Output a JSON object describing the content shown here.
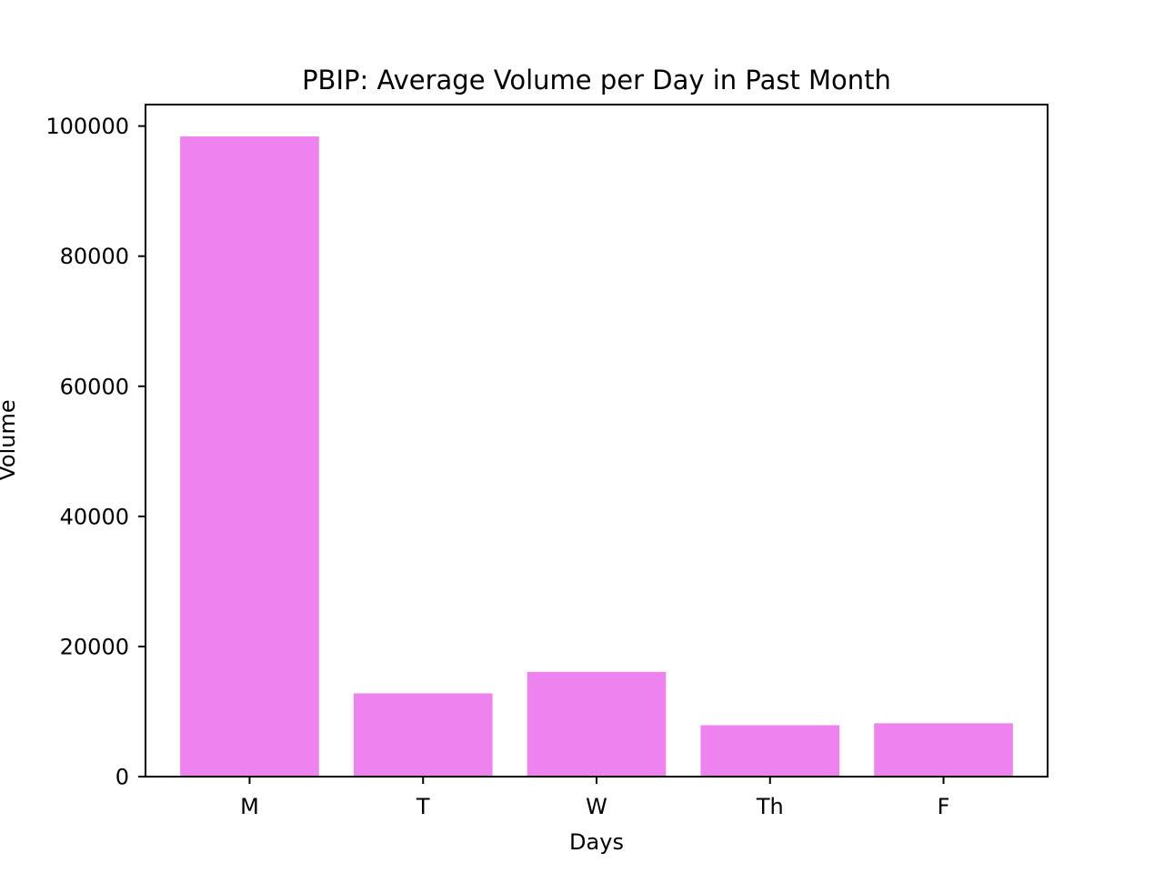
{
  "chart_data": {
    "type": "bar",
    "title": "PBIP: Average Volume per Day in Past Month",
    "xlabel": "Days",
    "ylabel": "Volume",
    "categories": [
      "M",
      "T",
      "W",
      "Th",
      "F"
    ],
    "values": [
      98400,
      12800,
      16100,
      7900,
      8200
    ],
    "ylim": [
      0,
      103300
    ],
    "yticks": [
      0,
      20000,
      40000,
      60000,
      80000,
      100000
    ],
    "ytick_labels": [
      "0",
      "20000",
      "40000",
      "60000",
      "80000",
      "100000"
    ],
    "bar_color": "#ee82ee",
    "grid": false,
    "legend": "none"
  }
}
